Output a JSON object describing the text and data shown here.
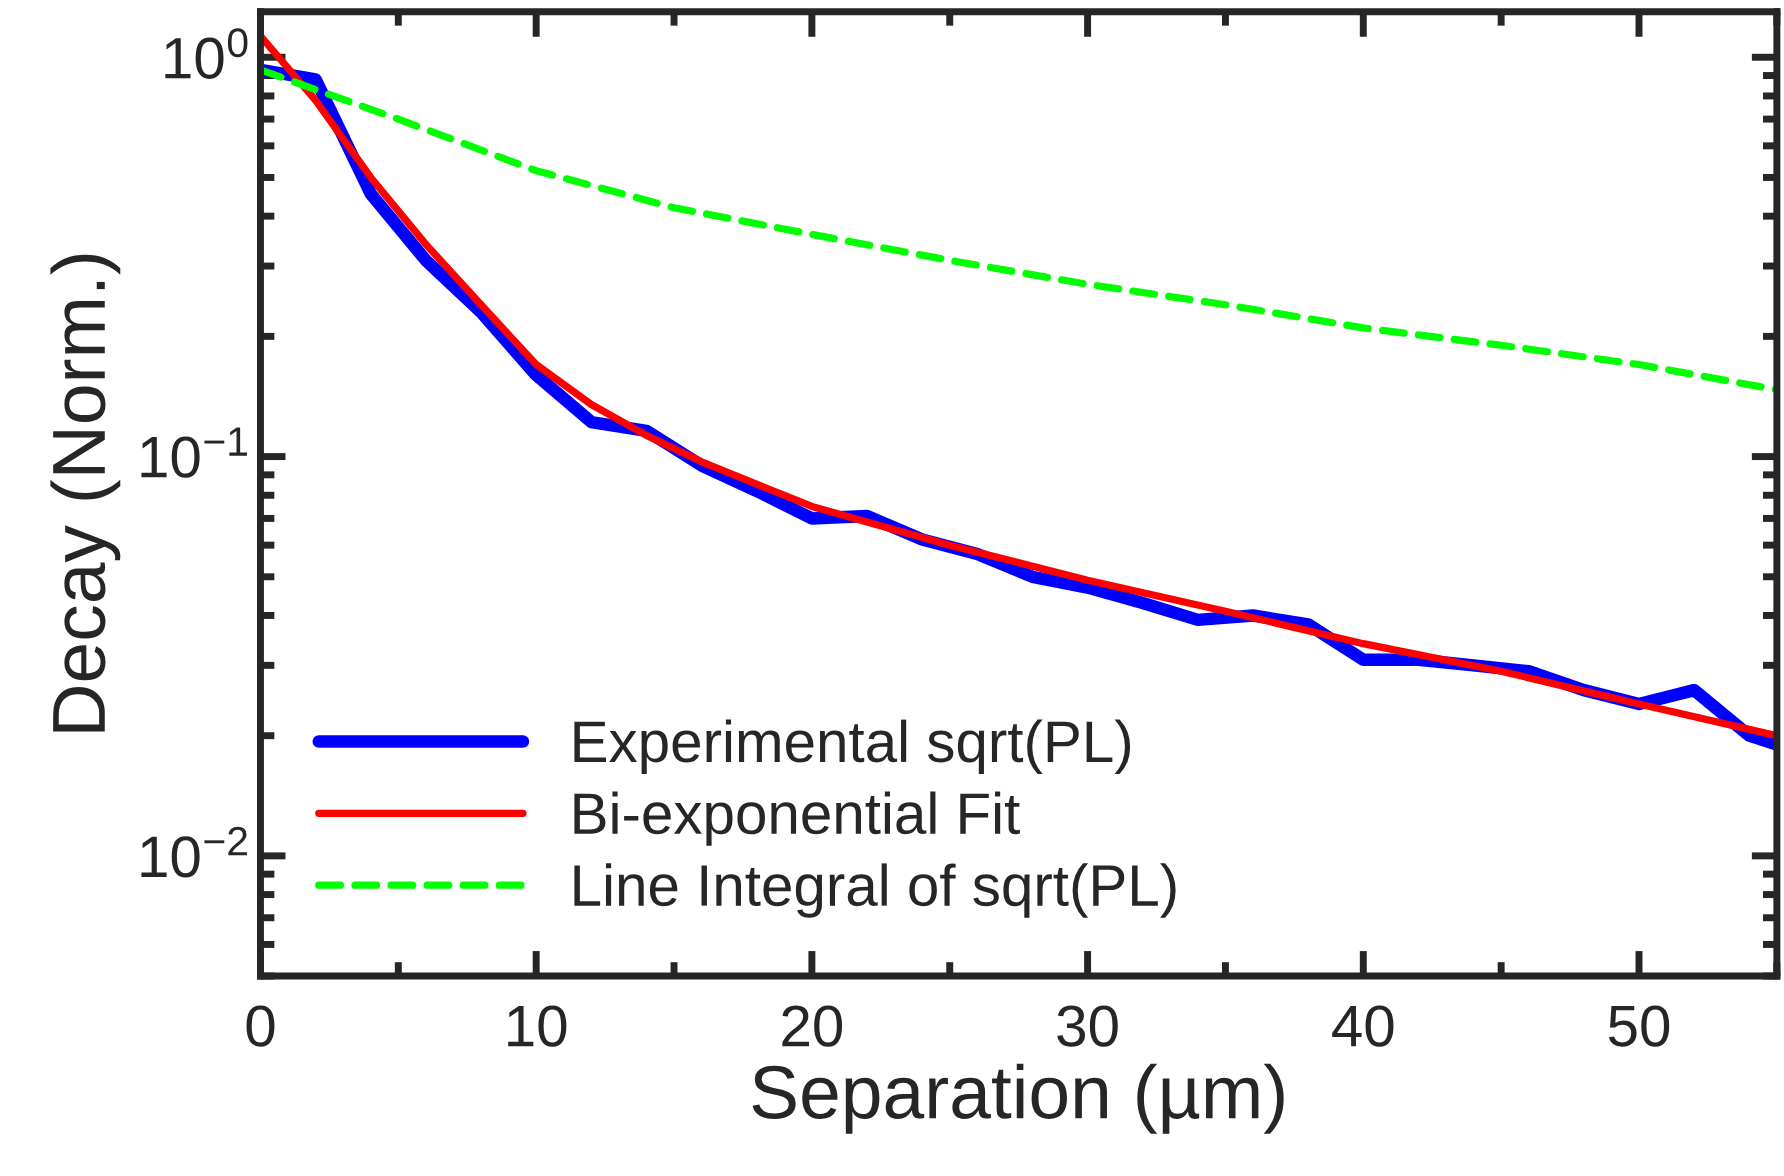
{
  "chart_data": {
    "type": "line",
    "xlabel": "Separation (µm)",
    "ylabel": "Decay (Norm.)",
    "log": "y",
    "xlim": [
      0,
      55
    ],
    "ylim": [
      0.005,
      1.3
    ],
    "xticks": [
      0,
      10,
      20,
      30,
      40,
      50
    ],
    "yticks": [
      {
        "value": 0.01,
        "label": "10$^{−2}$"
      },
      {
        "value": 0.1,
        "label": "10$^{−1}$"
      },
      {
        "value": 1,
        "label": "10$^{0}$"
      }
    ],
    "grid": false,
    "legend": "bottom left",
    "series": [
      {
        "name": "Experimental sqrt(PL)",
        "color": "#0000ff",
        "line_style": "solid",
        "x": [
          0,
          2,
          4,
          6,
          8,
          10,
          12,
          14,
          16,
          18,
          20,
          22,
          24,
          26,
          28,
          30,
          32,
          34,
          36,
          38,
          40,
          42,
          44,
          46,
          48,
          50,
          52,
          54,
          55
        ],
        "values": [
          0.93,
          0.88,
          0.455,
          0.31,
          0.23,
          0.16,
          0.122,
          0.116,
          0.095,
          0.082,
          0.07,
          0.071,
          0.062,
          0.057,
          0.05,
          0.047,
          0.043,
          0.039,
          0.04,
          0.038,
          0.031,
          0.031,
          0.03,
          0.029,
          0.026,
          0.024,
          0.026,
          0.02,
          0.019
        ]
      },
      {
        "name": "Bi-exponential Fit",
        "color": "#ff0000",
        "line_style": "solid",
        "x": [
          0,
          2,
          4,
          6,
          8,
          10,
          12,
          14,
          16,
          20,
          25,
          30,
          35,
          40,
          45,
          50,
          55
        ],
        "values": [
          1.13,
          0.78,
          0.5,
          0.34,
          0.24,
          0.17,
          0.135,
          0.113,
          0.097,
          0.075,
          0.06,
          0.049,
          0.041,
          0.034,
          0.029,
          0.024,
          0.02
        ]
      },
      {
        "name": "Line Integral of sqrt(PL)",
        "color": "#00ff00",
        "line_style": "dashed",
        "x": [
          0,
          5,
          10,
          15,
          20,
          25,
          30,
          35,
          40,
          45,
          50,
          55
        ],
        "values": [
          0.93,
          0.7,
          0.52,
          0.42,
          0.36,
          0.31,
          0.27,
          0.24,
          0.21,
          0.19,
          0.17,
          0.147
        ]
      }
    ]
  }
}
